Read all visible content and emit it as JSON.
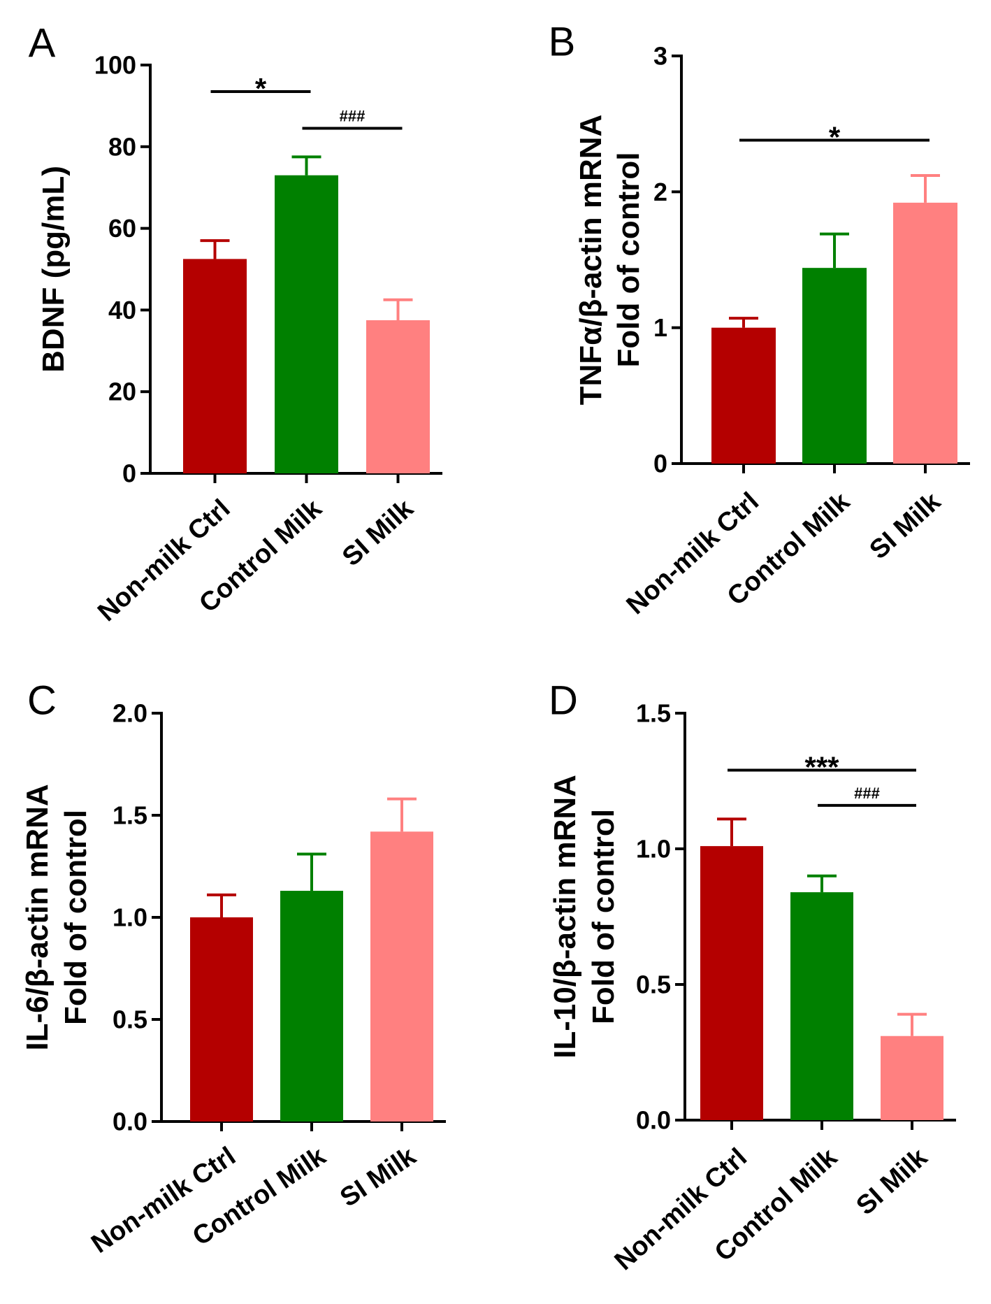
{
  "colors": {
    "non_milk_ctrl": "#b40000",
    "control_milk": "#008000",
    "si_milk": "#ff8080",
    "axis": "#000000"
  },
  "chart_data": [
    {
      "panel": "A",
      "type": "bar",
      "title": "",
      "xlabel": "",
      "ylabel": "BDNF (pg/mL)",
      "ylabel_lines": [
        "BDNF (pg/mL)"
      ],
      "categories": [
        "Non-milk Ctrl",
        "Control Milk",
        "SI Milk"
      ],
      "values": [
        52.5,
        73,
        37.5
      ],
      "errors": [
        4.5,
        4.5,
        5
      ],
      "ylim": [
        0,
        100
      ],
      "yticks": [
        0,
        20,
        40,
        60,
        80,
        100
      ],
      "ytick_labels": [
        "0",
        "20",
        "40",
        "60",
        "80",
        "100"
      ],
      "significance": [
        {
          "from": 0,
          "to": 1,
          "y": 93.5,
          "label": "*"
        },
        {
          "from": 1,
          "to": 2,
          "y": 84.5,
          "label": "###"
        }
      ]
    },
    {
      "panel": "B",
      "type": "bar",
      "title": "",
      "xlabel": "",
      "ylabel": "TNFα/β-actin mRNA Fold of control",
      "ylabel_lines": [
        "TNFα/β-actin mRNA",
        "Fold of control"
      ],
      "categories": [
        "Non-milk Ctrl",
        "Control Milk",
        "SI Milk"
      ],
      "values": [
        1.0,
        1.44,
        1.92
      ],
      "errors": [
        0.07,
        0.25,
        0.2
      ],
      "ylim": [
        0,
        3
      ],
      "yticks": [
        0,
        1,
        2,
        3
      ],
      "ytick_labels": [
        "0",
        "1",
        "2",
        "3"
      ],
      "significance": [
        {
          "from": 0,
          "to": 2,
          "y": 2.38,
          "label": "*"
        }
      ]
    },
    {
      "panel": "C",
      "type": "bar",
      "title": "",
      "xlabel": "",
      "ylabel": "IL-6/β-actin mRNA Fold of control",
      "ylabel_lines": [
        "IL-6/β-actin mRNA",
        "Fold of control"
      ],
      "categories": [
        "Non-milk Ctrl",
        "Control Milk",
        "SI Milk"
      ],
      "values": [
        1.0,
        1.13,
        1.42
      ],
      "errors": [
        0.11,
        0.18,
        0.16
      ],
      "ylim": [
        0,
        2
      ],
      "yticks": [
        0,
        0.5,
        1,
        1.5,
        2
      ],
      "ytick_labels": [
        "0.0",
        "0.5",
        "1.0",
        "1.5",
        "2.0"
      ],
      "significance": []
    },
    {
      "panel": "D",
      "type": "bar",
      "title": "",
      "xlabel": "",
      "ylabel": "IL-10/β-actin mRNA Fold of control",
      "ylabel_lines": [
        "IL-10/β-actin mRNA",
        "Fold of control"
      ],
      "categories": [
        "Non-milk Ctrl",
        "Control Milk",
        "SI Milk"
      ],
      "values": [
        1.01,
        0.84,
        0.31
      ],
      "errors": [
        0.1,
        0.06,
        0.08
      ],
      "ylim": [
        0,
        1.5
      ],
      "yticks": [
        0,
        0.5,
        1,
        1.5
      ],
      "ytick_labels": [
        "0.0",
        "0.5",
        "1.0",
        "1.5"
      ],
      "significance": [
        {
          "from": 0,
          "to": 2,
          "y": 1.29,
          "label": "***"
        },
        {
          "from": 1,
          "to": 2,
          "y": 1.16,
          "label": "###"
        }
      ]
    }
  ]
}
